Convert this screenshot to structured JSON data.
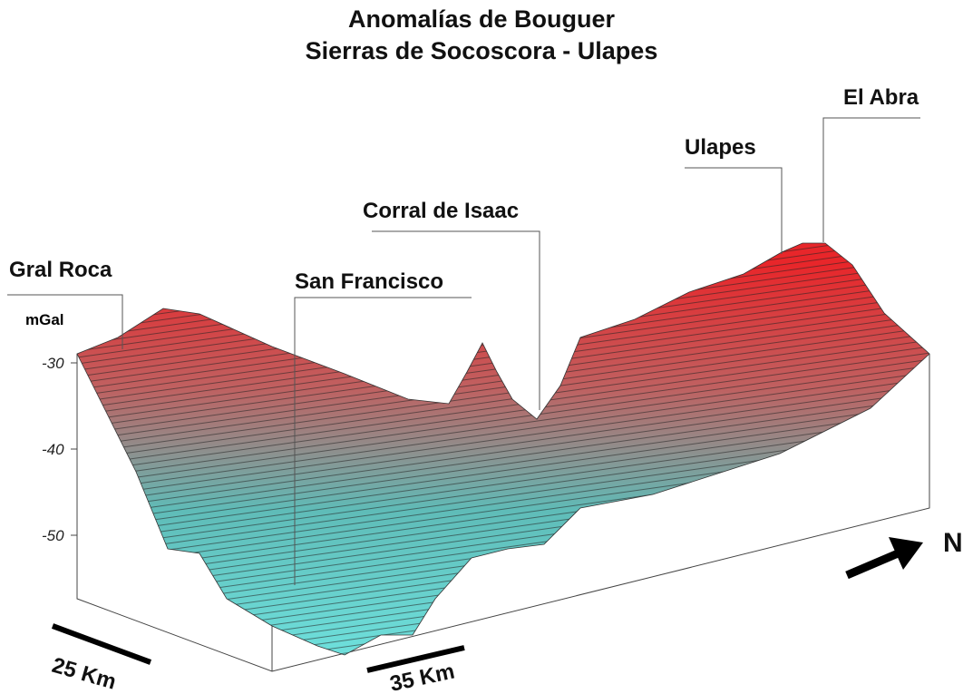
{
  "title": [
    "Anomalías de Bouguer",
    "Sierras de Socoscora - Ulapes"
  ],
  "axis": {
    "label": "mGal",
    "ticks": [
      "-30",
      "-40",
      "-50"
    ]
  },
  "places": [
    "Gral Roca",
    "San Francisco",
    "Corral de Isaac",
    "Ulapes",
    "El Abra"
  ],
  "scales": [
    "25 Km",
    "35 Km"
  ],
  "north": "N"
}
